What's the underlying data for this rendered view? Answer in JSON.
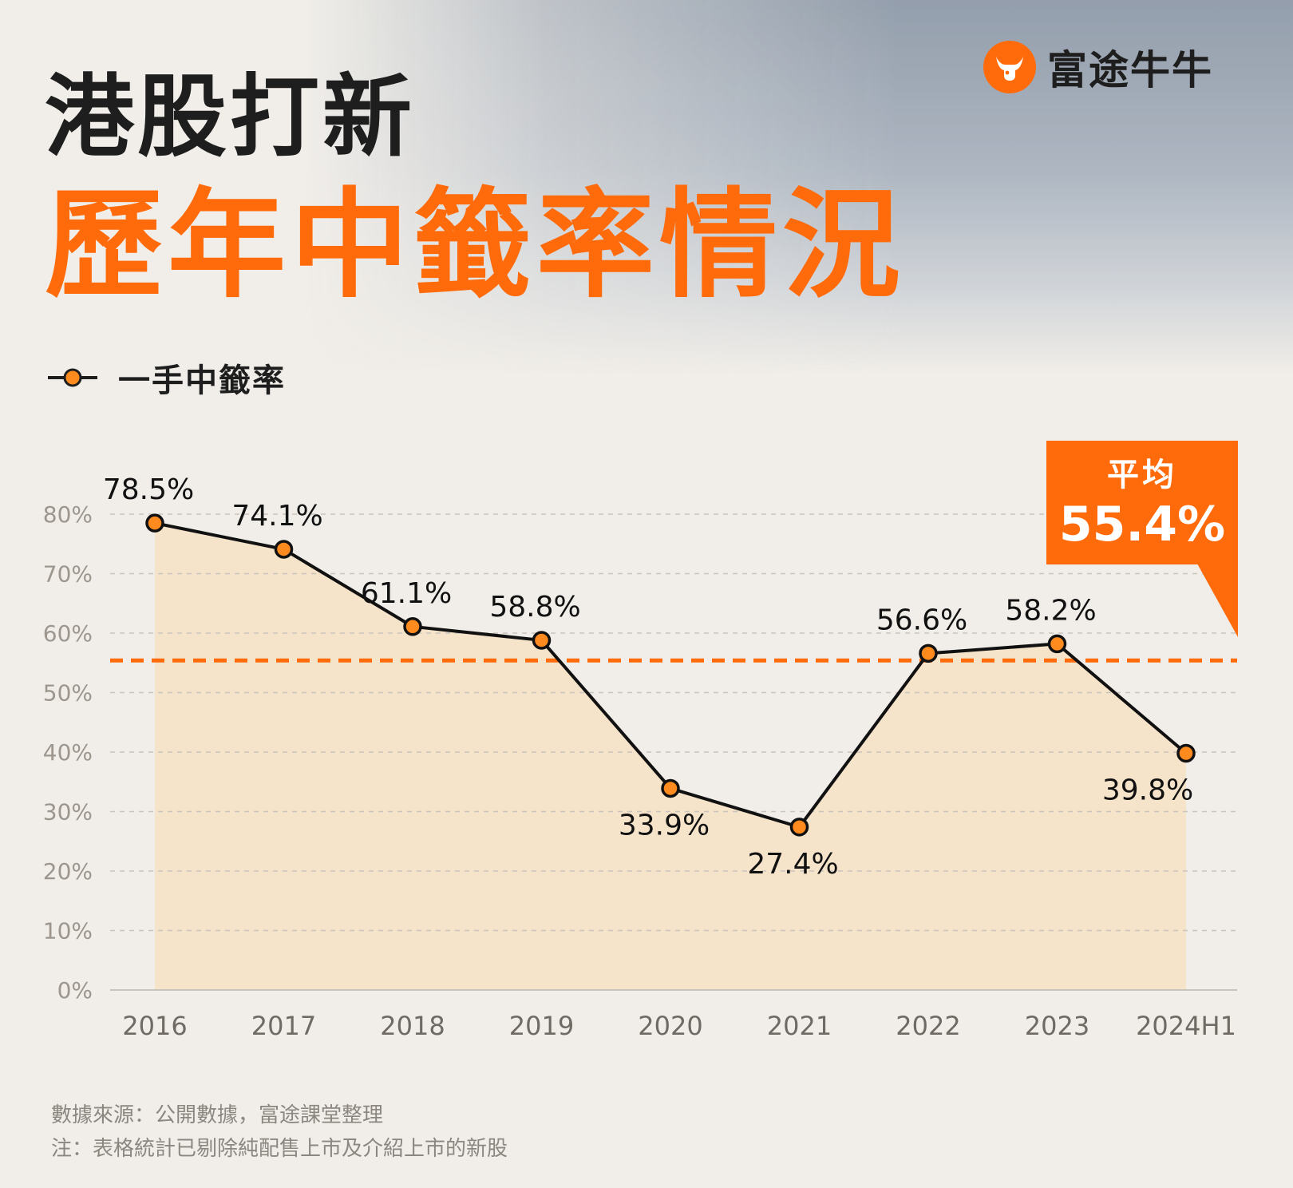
{
  "brand": {
    "name": "富途牛牛",
    "logo_icon": "bull-head-icon",
    "accent": "#ff6a0a"
  },
  "header": {
    "title_line1": "港股打新",
    "title_line2": "歷年中籤率情況"
  },
  "legend": {
    "label": "一手中籤率"
  },
  "average_callout": {
    "title": "平均",
    "value_label": "55.4%"
  },
  "chart_data": {
    "type": "line",
    "categories": [
      "2016",
      "2017",
      "2018",
      "2019",
      "2020",
      "2021",
      "2022",
      "2023",
      "2024H1"
    ],
    "series": [
      {
        "name": "一手中籤率",
        "values": [
          78.5,
          74.1,
          61.1,
          58.8,
          33.9,
          27.4,
          56.6,
          58.2,
          39.8
        ],
        "labels": [
          "78.5%",
          "74.1%",
          "61.1%",
          "58.8%",
          "33.9%",
          "27.4%",
          "56.6%",
          "58.2%",
          "39.8%"
        ],
        "color": "#ff8a1e"
      }
    ],
    "average": 55.4,
    "yticks": [
      0,
      10,
      20,
      30,
      40,
      50,
      60,
      70,
      80
    ],
    "ytick_labels": [
      "0%",
      "10%",
      "20%",
      "30%",
      "40%",
      "50%",
      "60%",
      "70%",
      "80%"
    ],
    "ylim": [
      0,
      80
    ],
    "grid": true,
    "area_fill": "#f6e1c4",
    "average_line_color": "#ff6a0a"
  },
  "footnotes": {
    "source": "數據來源：公開數據，富途課堂整理",
    "note": "注：表格統計已剔除純配售上市及介紹上市的新股"
  }
}
